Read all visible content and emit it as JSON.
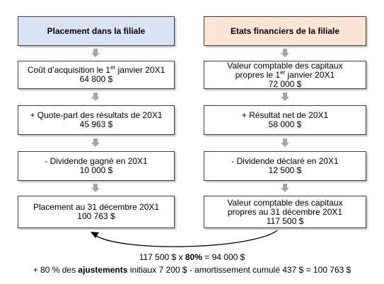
{
  "left": {
    "header": "Placement dans la filiale",
    "boxes": [
      {
        "lines": [
          [
            "Coût d’acquisition le 1",
            "er",
            " janvier 20X1"
          ],
          [
            "64 800 $"
          ]
        ]
      },
      {
        "lines": [
          [
            "+ Quote-part des résultats de 20X1"
          ],
          [
            "45 963 $"
          ]
        ]
      },
      {
        "lines": [
          [
            "- Dividende gagné en 20X1"
          ],
          [
            "10 000 $"
          ]
        ]
      },
      {
        "lines": [
          [
            "Placement au 31 décembre 20X1"
          ],
          [
            "100 763 $"
          ]
        ]
      }
    ]
  },
  "right": {
    "header": "Etats financiers de la filiale",
    "boxes": [
      {
        "lines": [
          [
            "Valeur comptable des capitaux"
          ],
          [
            "propres le 1",
            "er",
            " janvier 20X1"
          ],
          [
            "72 000 $"
          ]
        ]
      },
      {
        "lines": [
          [
            "+ Résultat net de 20X1"
          ],
          [
            "58 000 $"
          ]
        ]
      },
      {
        "lines": [
          [
            "- Dividende déclaré en 20X1"
          ],
          [
            "12 500 $"
          ]
        ]
      },
      {
        "lines": [
          [
            "Valeur comptable des capitaux"
          ],
          [
            "propres au 31 décembre 20X1"
          ],
          [
            "117 500 $"
          ]
        ]
      }
    ]
  },
  "footer": {
    "lines": [
      [
        "117 500 $ x ",
        "80%",
        " = 94 000 $"
      ],
      [
        "+ 80 % des ",
        "ajustements",
        " initiaux 7 200 $ - amortissement cumulé 437 $ = 100 763 $"
      ]
    ]
  }
}
